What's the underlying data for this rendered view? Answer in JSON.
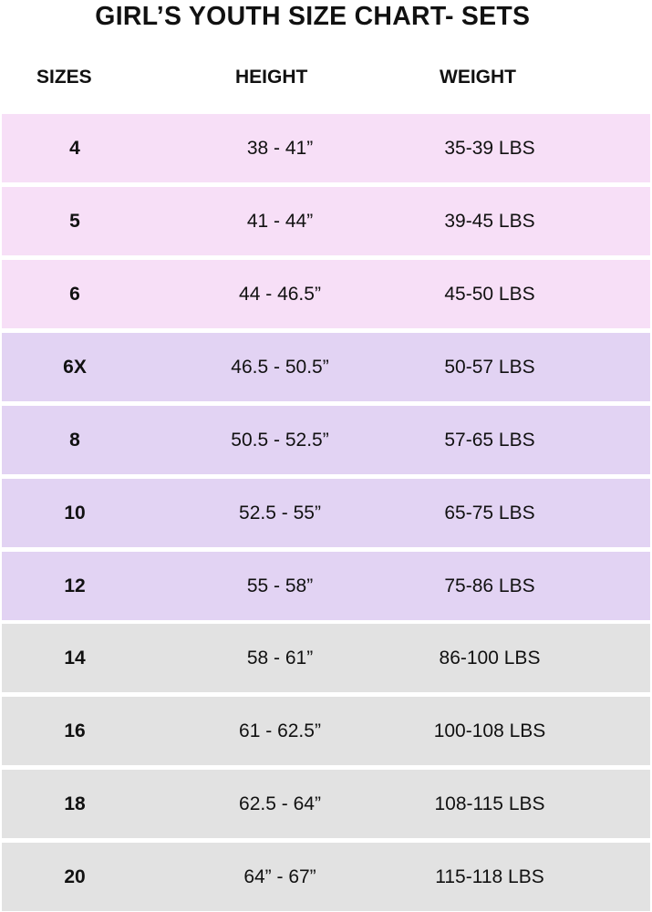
{
  "title": "GIRL’S YOUTH SIZE CHART- SETS",
  "headers": {
    "size": "SIZES",
    "height": "HEIGHT",
    "weight": "WEIGHT"
  },
  "colors": {
    "pink": "#f7dff7",
    "purple": "#e2d3f3",
    "gray": "#e2e2e2"
  },
  "rows": [
    {
      "size": "4",
      "height": "38 - 41”",
      "weight": "35-39 LBS",
      "color": "#f7dff7"
    },
    {
      "size": "5",
      "height": "41 - 44”",
      "weight": "39-45 LBS",
      "color": "#f7dff7"
    },
    {
      "size": "6",
      "height": "44 - 46.5”",
      "weight": "45-50 LBS",
      "color": "#f7dff7"
    },
    {
      "size": "6X",
      "height": "46.5 - 50.5”",
      "weight": "50-57 LBS",
      "color": "#e2d3f3"
    },
    {
      "size": "8",
      "height": "50.5 - 52.5”",
      "weight": "57-65 LBS",
      "color": "#e2d3f3"
    },
    {
      "size": "10",
      "height": "52.5 - 55”",
      "weight": "65-75 LBS",
      "color": "#e2d3f3"
    },
    {
      "size": "12",
      "height": "55 - 58”",
      "weight": "75-86 LBS",
      "color": "#e2d3f3"
    },
    {
      "size": "14",
      "height": "58 - 61”",
      "weight": "86-100 LBS",
      "color": "#e2e2e2"
    },
    {
      "size": "16",
      "height": "61 - 62.5”",
      "weight": "100-108 LBS",
      "color": "#e2e2e2"
    },
    {
      "size": "18",
      "height": "62.5 - 64”",
      "weight": "108-115 LBS",
      "color": "#e2e2e2"
    },
    {
      "size": "20",
      "height": "64” - 67”",
      "weight": "115-118 LBS",
      "color": "#e2e2e2"
    }
  ]
}
